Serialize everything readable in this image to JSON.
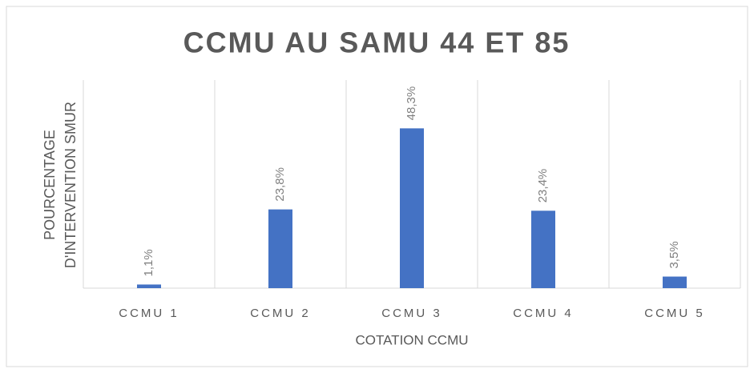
{
  "chart_data": {
    "type": "bar",
    "title": "CCMU AU SAMU 44 ET 85",
    "x_label": "COTATION CCMU",
    "y_label": "POURCENTAGE D'INTERVENTION SMUR",
    "categories": [
      "CCMU 1",
      "CCMU 2",
      "CCMU 3",
      "CCMU 4",
      "CCMU 5"
    ],
    "values": [
      1.1,
      23.8,
      48.3,
      23.4,
      3.5
    ],
    "value_labels": [
      "1,1%",
      "23,8%",
      "48,3%",
      "23,4%",
      "3,5%"
    ],
    "color": "#4472c4",
    "ylim": [
      0,
      60
    ]
  }
}
